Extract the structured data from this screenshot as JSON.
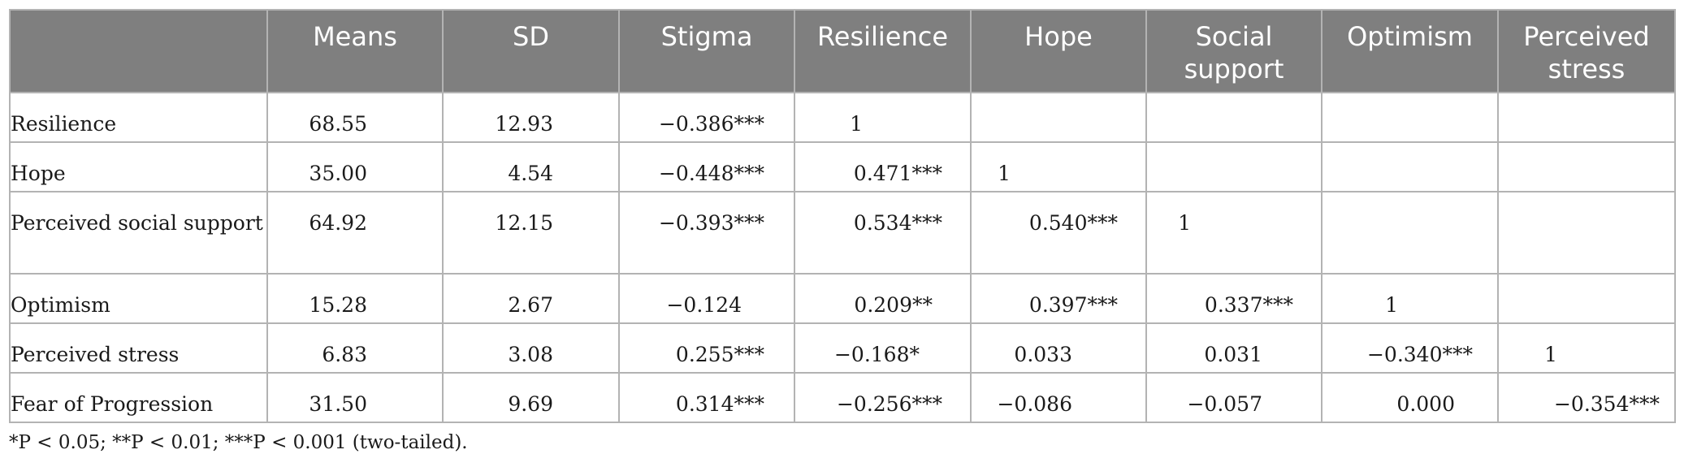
{
  "table": {
    "columns": [
      "",
      "Means",
      "SD",
      "Stigma",
      "Resilience",
      "Hope",
      "Social support",
      "Optimism",
      "Perceived stress"
    ],
    "rows": [
      {
        "label": "Resilience",
        "cells": [
          "68.55",
          "12.93",
          "−0.386***",
          "1",
          "",
          "",
          "",
          ""
        ]
      },
      {
        "label": "Hope",
        "cells": [
          "35.00",
          "4.54",
          "−0.448***",
          "0.471***",
          "1",
          "",
          "",
          ""
        ]
      },
      {
        "label": "Perceived social support",
        "cells": [
          "64.92",
          "12.15",
          "−0.393***",
          "0.534***",
          "0.540***",
          "1",
          "",
          ""
        ]
      },
      {
        "label": "Optimism",
        "cells": [
          "15.28",
          "2.67",
          "−0.124",
          "0.209**",
          "0.397***",
          "0.337***",
          "1",
          ""
        ]
      },
      {
        "label": "Perceived stress",
        "cells": [
          "6.83",
          "3.08",
          "0.255***",
          "−0.168*",
          "0.033",
          "0.031",
          "−0.340***",
          "1"
        ]
      },
      {
        "label": "Fear of Progression",
        "cells": [
          "31.50",
          "9.69",
          "0.314***",
          "−0.256***",
          "−0.086",
          "−0.057",
          "0.000",
          "−0.354***"
        ]
      }
    ]
  },
  "footnote": "*P < 0.05; **P < 0.01; ***P < 0.001 (two-tailed).",
  "colors": {
    "header_bg": "#7f7f7f",
    "header_text": "#ffffff",
    "grid": "#b3b3b3",
    "body_text": "#1a1a1a"
  }
}
